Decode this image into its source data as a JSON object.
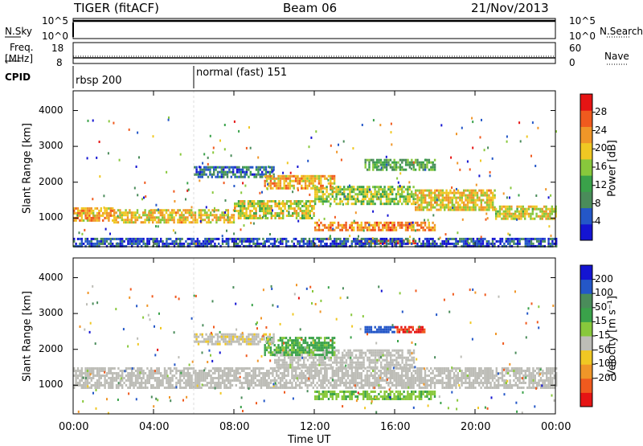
{
  "header": {
    "radar": "TIGER (fitACF)",
    "beam": "Beam 06",
    "date": "21/Nov/2013"
  },
  "sidebar": {
    "nsky_label": "N.Sky",
    "nsearch_label": "N.Search",
    "freq_label_top": "Freq.",
    "freq_label_bottom": "[MHz]",
    "nave_label": "Nave",
    "cpid_label": "CPID",
    "nsky_ticks": [
      "10^5",
      "10^0"
    ],
    "nsearch_ticks": [
      "10^5",
      "10^0"
    ],
    "freq_ticks": [
      "18",
      "8"
    ],
    "nave_ticks": [
      "60",
      "0"
    ]
  },
  "cpid": {
    "segments": [
      {
        "label": "rbsp 200",
        "start_hour": 0
      },
      {
        "label": "normal (fast) 151",
        "start_hour": 6
      }
    ]
  },
  "colors": {
    "background": "#ffffff",
    "ground_scatter": "#bdbdb7"
  },
  "chart_data": [
    {
      "type": "heatmap",
      "panel": "power",
      "xlabel": "",
      "ylabel": "Slant Range [km]",
      "xlim": [
        0,
        24
      ],
      "ylim": [
        200,
        4550
      ],
      "yticks": [
        1000,
        2000,
        3000,
        4000
      ],
      "xticks": [
        0,
        4,
        8,
        12,
        16,
        20,
        24
      ],
      "colorbar": {
        "label": "Power [dB]",
        "range": [
          0,
          32
        ],
        "tick_values": [
          4,
          8,
          12,
          16,
          20,
          24,
          28
        ],
        "tick_labels": [
          "4",
          "8",
          "12",
          "16",
          "20",
          "24",
          "28"
        ],
        "colors": [
          "#1414d2",
          "#2457c8",
          "#4a8c5a",
          "#3aa24a",
          "#88c83c",
          "#f0c823",
          "#f09628",
          "#f05a1e",
          "#e61414"
        ]
      },
      "regions": [
        {
          "t0": 0,
          "t1": 2,
          "r0": 950,
          "r1": 1300,
          "value": 22
        },
        {
          "t0": 2,
          "t1": 8,
          "r0": 850,
          "r1": 1250,
          "value": 20
        },
        {
          "t0": 8,
          "t1": 12,
          "r0": 1000,
          "r1": 1500,
          "value": 18
        },
        {
          "t0": 12,
          "t1": 17,
          "r0": 1400,
          "r1": 1900,
          "value": 16
        },
        {
          "t0": 17,
          "t1": 21,
          "r0": 1200,
          "r1": 1800,
          "value": 20
        },
        {
          "t0": 21,
          "t1": 24,
          "r0": 950,
          "r1": 1350,
          "value": 19
        },
        {
          "t0": 6,
          "t1": 10,
          "r0": 2150,
          "r1": 2450,
          "value": 7
        },
        {
          "t0": 9.5,
          "t1": 13,
          "r0": 1850,
          "r1": 2200,
          "value": 22
        },
        {
          "t0": 14.5,
          "t1": 18,
          "r0": 2350,
          "r1": 2650,
          "value": 12
        },
        {
          "t0": 12,
          "t1": 18,
          "r0": 650,
          "r1": 900,
          "value": 24
        },
        {
          "t0": 14,
          "t1": 17,
          "r0": 280,
          "r1": 400,
          "value": 25
        },
        {
          "t0": 0,
          "t1": 24,
          "r0": 220,
          "r1": 450,
          "value": 5
        }
      ]
    },
    {
      "type": "heatmap",
      "panel": "velocity",
      "xlabel": "Time UT",
      "ylabel": "Slant Range [km]",
      "xlim": [
        0,
        24
      ],
      "ylim": [
        200,
        4550
      ],
      "yticks": [
        1000,
        2000,
        3000,
        4000
      ],
      "xticks": [
        0,
        4,
        8,
        12,
        16,
        20,
        24
      ],
      "xtick_labels": [
        "00:00",
        "04:00",
        "08:00",
        "12:00",
        "16:00",
        "20:00",
        "00:00"
      ],
      "colorbar": {
        "label": "Velocity [m s⁻¹]",
        "range": [
          -250,
          250
        ],
        "tick_labels": [
          "200",
          "100",
          "50",
          "15",
          "-15",
          "-50",
          "-100",
          "-200"
        ],
        "colors": [
          "#e61414",
          "#f05a1e",
          "#f09628",
          "#f0c823",
          "#bdbdb7",
          "#88c83c",
          "#3aa24a",
          "#4a8c5a",
          "#2457c8",
          "#1414d2"
        ]
      },
      "regions": [
        {
          "t0": 0,
          "t1": 24,
          "r0": 900,
          "r1": 1500,
          "value": 0
        },
        {
          "t0": 10,
          "t1": 17,
          "r0": 1500,
          "r1": 2000,
          "value": 0
        },
        {
          "t0": 9.5,
          "t1": 13,
          "r0": 1850,
          "r1": 2350,
          "value": 60
        },
        {
          "t0": 14.5,
          "t1": 16,
          "r0": 2450,
          "r1": 2650,
          "value": 180
        },
        {
          "t0": 16,
          "t1": 17.5,
          "r0": 2450,
          "r1": 2650,
          "value": -200
        },
        {
          "t0": 12,
          "t1": 18,
          "r0": 600,
          "r1": 850,
          "value": 40
        },
        {
          "t0": 6,
          "t1": 10,
          "r0": 2150,
          "r1": 2450,
          "value": -40
        }
      ]
    }
  ]
}
